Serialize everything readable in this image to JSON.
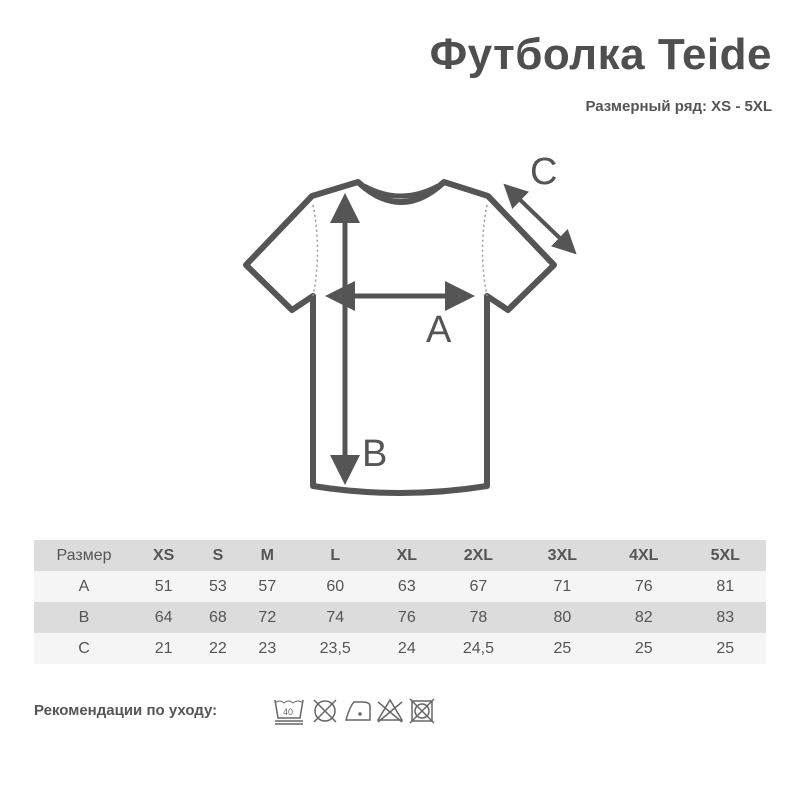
{
  "header": {
    "title": "Футболка Teide",
    "subtitle": "Размерный ряд: XS - 5XL"
  },
  "diagram": {
    "labels": {
      "a": "A",
      "b": "B",
      "c": "C"
    },
    "color": "#555555"
  },
  "table": {
    "headers": [
      "Размер",
      "XS",
      "S",
      "M",
      "L",
      "XL",
      "2XL",
      "3XL",
      "4XL",
      "5XL"
    ],
    "rows": [
      [
        "A",
        "51",
        "53",
        "57",
        "60",
        "63",
        "67",
        "71",
        "76",
        "81"
      ],
      [
        "B",
        "64",
        "68",
        "72",
        "74",
        "76",
        "78",
        "80",
        "82",
        "83"
      ],
      [
        "C",
        "21",
        "22",
        "23",
        "23,5",
        "24",
        "24,5",
        "25",
        "25",
        "25"
      ]
    ]
  },
  "care": {
    "label": "Рекомендации по уходу:",
    "wash_temp": "40",
    "icons": [
      "wash-40-icon",
      "no-tumble-dry-icon",
      "iron-low-icon",
      "no-bleach-icon",
      "no-dry-clean-icon"
    ]
  }
}
